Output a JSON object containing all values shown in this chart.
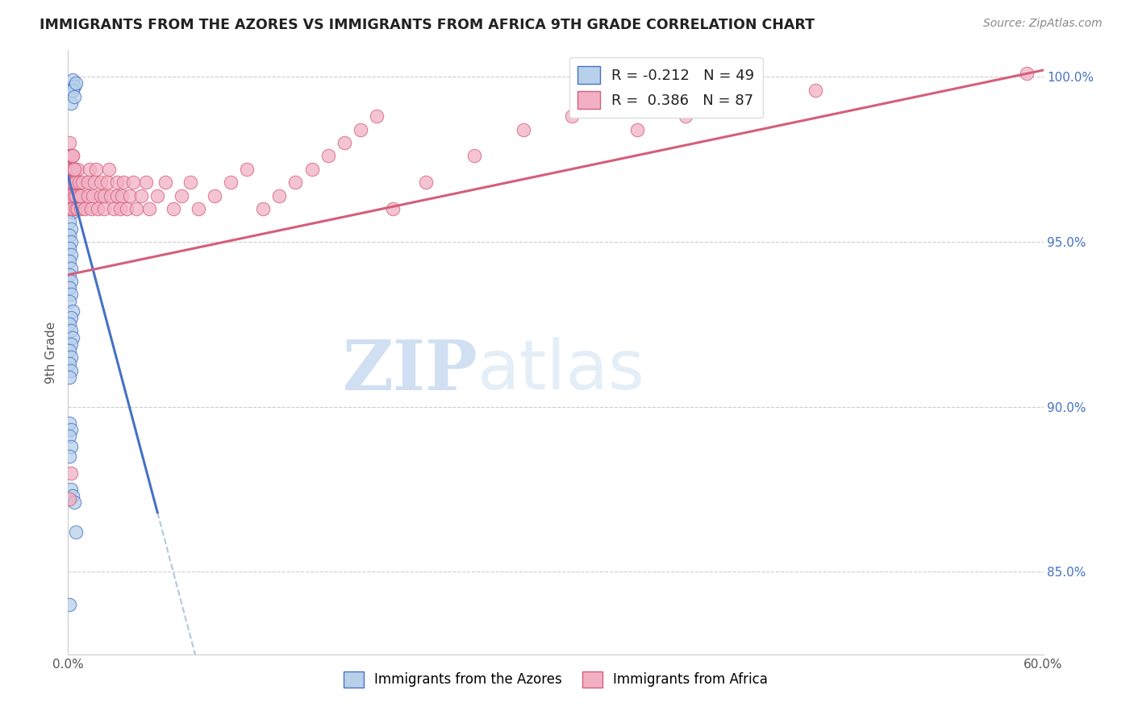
{
  "title": "IMMIGRANTS FROM THE AZORES VS IMMIGRANTS FROM AFRICA 9TH GRADE CORRELATION CHART",
  "source": "Source: ZipAtlas.com",
  "ylabel": "9th Grade",
  "x_min": 0.0,
  "x_max": 0.6,
  "y_min": 0.825,
  "y_max": 1.008,
  "x_ticks": [
    0.0,
    0.1,
    0.2,
    0.3,
    0.4,
    0.5,
    0.6
  ],
  "x_tick_labels": [
    "0.0%",
    "",
    "",
    "",
    "",
    "",
    "60.0%"
  ],
  "y_ticks": [
    0.85,
    0.9,
    0.95,
    1.0
  ],
  "y_tick_labels": [
    "85.0%",
    "90.0%",
    "95.0%",
    "100.0%"
  ],
  "color_azores": "#b8d0ea",
  "color_africa": "#f2b0c4",
  "line_color_azores": "#4472c4",
  "line_color_africa": "#d45f7a",
  "line_color_dashed": "#b0c8e0",
  "watermark_zip": "ZIP",
  "watermark_atlas": "atlas",
  "legend_r_azores": "R = -0.212",
  "legend_n_azores": "N = 49",
  "legend_r_africa": "R =  0.386",
  "legend_n_africa": "N = 87",
  "azores_x": [
    0.003,
    0.004,
    0.003,
    0.005,
    0.002,
    0.004,
    0.001,
    0.001,
    0.002,
    0.003,
    0.001,
    0.002,
    0.001,
    0.002,
    0.003,
    0.001,
    0.002,
    0.001,
    0.002,
    0.001,
    0.002,
    0.001,
    0.002,
    0.001,
    0.002,
    0.001,
    0.002,
    0.001,
    0.003,
    0.002,
    0.001,
    0.002,
    0.003,
    0.002,
    0.001,
    0.002,
    0.001,
    0.002,
    0.001,
    0.001,
    0.002,
    0.001,
    0.002,
    0.001,
    0.002,
    0.003,
    0.004,
    0.005,
    0.001
  ],
  "azores_y": [
    0.999,
    0.997,
    0.996,
    0.998,
    0.992,
    0.994,
    0.975,
    0.973,
    0.971,
    0.97,
    0.968,
    0.966,
    0.963,
    0.961,
    0.959,
    0.956,
    0.954,
    0.952,
    0.95,
    0.948,
    0.946,
    0.944,
    0.942,
    0.94,
    0.938,
    0.936,
    0.934,
    0.932,
    0.929,
    0.927,
    0.925,
    0.923,
    0.921,
    0.919,
    0.917,
    0.915,
    0.913,
    0.911,
    0.909,
    0.895,
    0.893,
    0.891,
    0.888,
    0.885,
    0.875,
    0.873,
    0.871,
    0.862,
    0.84
  ],
  "africa_x": [
    0.001,
    0.001,
    0.001,
    0.001,
    0.001,
    0.002,
    0.002,
    0.002,
    0.002,
    0.002,
    0.003,
    0.003,
    0.003,
    0.003,
    0.004,
    0.004,
    0.004,
    0.005,
    0.005,
    0.005,
    0.006,
    0.006,
    0.007,
    0.007,
    0.008,
    0.008,
    0.009,
    0.01,
    0.012,
    0.012,
    0.013,
    0.014,
    0.015,
    0.016,
    0.017,
    0.018,
    0.02,
    0.02,
    0.022,
    0.022,
    0.024,
    0.025,
    0.026,
    0.028,
    0.03,
    0.03,
    0.032,
    0.033,
    0.034,
    0.036,
    0.038,
    0.04,
    0.042,
    0.045,
    0.048,
    0.05,
    0.055,
    0.06,
    0.065,
    0.07,
    0.075,
    0.08,
    0.09,
    0.1,
    0.11,
    0.12,
    0.13,
    0.14,
    0.15,
    0.16,
    0.17,
    0.18,
    0.19,
    0.2,
    0.22,
    0.25,
    0.28,
    0.31,
    0.003,
    0.004,
    0.35,
    0.38,
    0.42,
    0.46,
    0.001,
    0.002,
    0.59
  ],
  "africa_y": [
    0.968,
    0.972,
    0.976,
    0.98,
    0.964,
    0.968,
    0.972,
    0.976,
    0.96,
    0.964,
    0.968,
    0.972,
    0.976,
    0.96,
    0.964,
    0.968,
    0.972,
    0.96,
    0.964,
    0.968,
    0.972,
    0.96,
    0.964,
    0.968,
    0.96,
    0.964,
    0.968,
    0.96,
    0.964,
    0.968,
    0.972,
    0.96,
    0.964,
    0.968,
    0.972,
    0.96,
    0.964,
    0.968,
    0.96,
    0.964,
    0.968,
    0.972,
    0.964,
    0.96,
    0.964,
    0.968,
    0.96,
    0.964,
    0.968,
    0.96,
    0.964,
    0.968,
    0.96,
    0.964,
    0.968,
    0.96,
    0.964,
    0.968,
    0.96,
    0.964,
    0.968,
    0.96,
    0.964,
    0.968,
    0.972,
    0.96,
    0.964,
    0.968,
    0.972,
    0.976,
    0.98,
    0.984,
    0.988,
    0.96,
    0.968,
    0.976,
    0.984,
    0.988,
    0.976,
    0.972,
    0.984,
    0.988,
    0.992,
    0.996,
    0.872,
    0.88,
    1.001
  ]
}
